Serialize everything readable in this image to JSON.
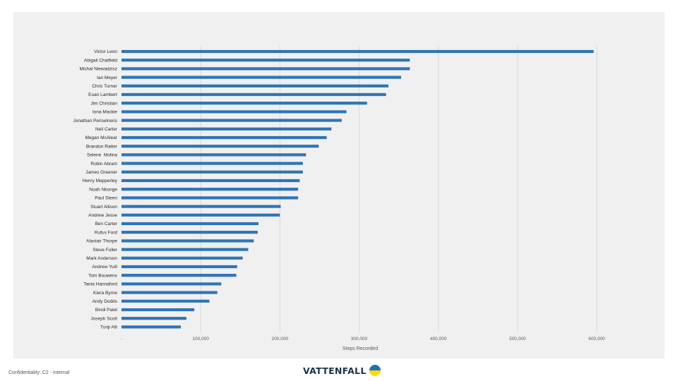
{
  "chart_data": {
    "type": "bar",
    "orientation": "horizontal",
    "categories": [
      "Victor Leon",
      "Abigail Chatfield",
      "Michal Niewadzisz",
      "Ian Meyer",
      "Chris Turner",
      "Euan Lambert",
      "Jim Christian",
      "Iona Mackie",
      "Jonathan Periselneris",
      "Neil Carter",
      "Megan McAlear",
      "Brandon Ratter",
      "Selene  Molina",
      "Robin Abram",
      "James Greener",
      "Henry Mapperley",
      "Noah Nkonge",
      "Paul Steen",
      "Stuart Allison",
      "Andrew Jesse",
      "Ben Carter",
      "Rufus Ford",
      "Alastair Thorpe",
      "Steve Fuller",
      "Mark Anderson",
      "Andrew Yuill",
      "Tom Bouwens",
      "Tania Hannaford",
      "Kiera Byrne",
      "Andy Dodds",
      "Bindi Patel",
      "Joseph Scott",
      "Tunji Alli"
    ],
    "values": [
      596000,
      364000,
      364000,
      353000,
      337000,
      334000,
      310000,
      284000,
      278000,
      265000,
      259000,
      249000,
      233000,
      229000,
      229000,
      225000,
      223000,
      223000,
      201000,
      200000,
      173000,
      172000,
      167000,
      160000,
      153000,
      146000,
      145000,
      126000,
      121000,
      111000,
      92000,
      82000,
      75000
    ],
    "xlabel": "Steps Recorded",
    "ylabel": "",
    "xlim": [
      0,
      600000
    ],
    "xticks": [
      0,
      100000,
      200000,
      300000,
      400000,
      500000,
      600000
    ],
    "xtick_labels": [
      "-",
      "100,000",
      "200,000",
      "300,000",
      "400,000",
      "500,000",
      "600,000"
    ],
    "grid": "vertical",
    "bar_color": "#2e75b6",
    "grid_color": "#d9d9d9",
    "background_color": "#f0f0f0"
  },
  "footer": {
    "confidentiality": "Confidentiality:  C2 - Internal",
    "brand": "VATTENFALL"
  },
  "colors": {
    "brand_blue": "#2071b5",
    "brand_yellow": "#ffda00",
    "brand_text": "#1e324b"
  }
}
